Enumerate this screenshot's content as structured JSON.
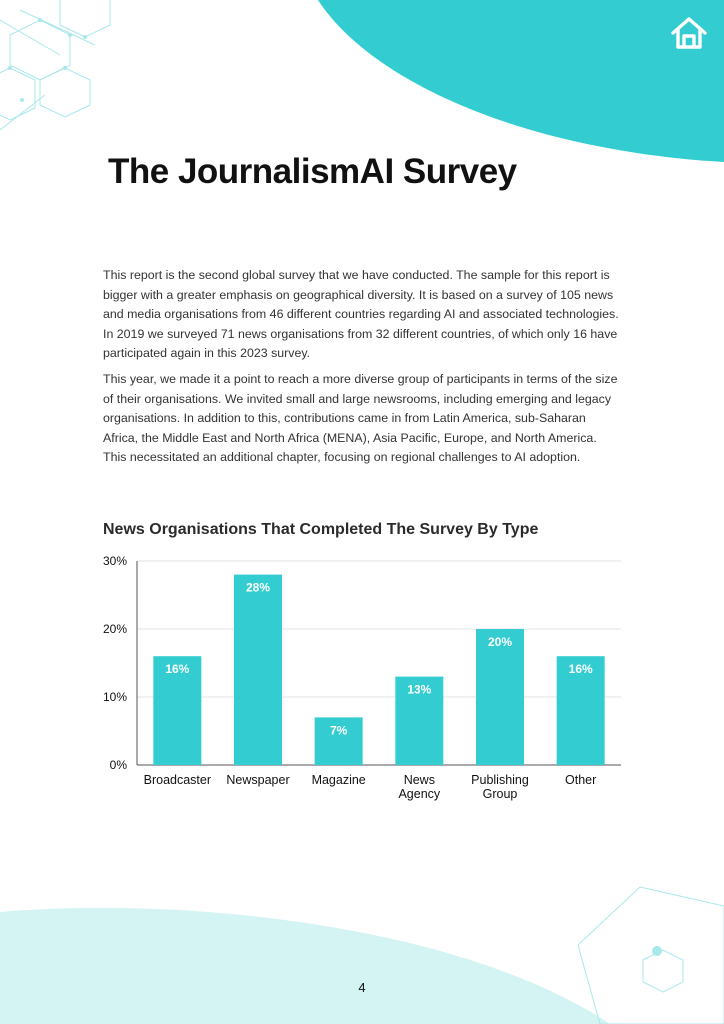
{
  "page": {
    "title": "The JournalismAI Survey",
    "page_number": "4",
    "accent_color": "#33cdd1",
    "light_accent_color": "#d3f4f3"
  },
  "header": {
    "home_icon": "home-icon"
  },
  "body": {
    "paragraphs": [
      "This report is the second global survey that we have conducted. The sample for this report is bigger with a greater emphasis on geographical diversity. It is based on a survey of 105 news and media organisations from 46 different countries regarding AI and associated technologies. In 2019 we surveyed 71 news organisations from 32 different countries, of which only 16 have participated again in this 2023 survey.",
      "This year, we made it a point to reach a more diverse group of participants in terms of the size of their organisations. We invited small and large newsrooms, including emerging and legacy organisations. In addition to this, contributions came in from Latin America, sub-Saharan Africa, the Middle East and North Africa (MENA), Asia Pacific, Europe, and North America. This necessitated an additional chapter, focusing on regional challenges to AI adoption."
    ]
  },
  "chart_data": {
    "type": "bar",
    "title": "News Organisations That Completed The Survey By Type",
    "categories": [
      "Broadcaster",
      "Newspaper",
      "Magazine",
      "News Agency",
      "Publishing Group",
      "Other"
    ],
    "category_lines": [
      [
        "Broadcaster"
      ],
      [
        "Newspaper"
      ],
      [
        "Magazine"
      ],
      [
        "News",
        "Agency"
      ],
      [
        "Publishing",
        "Group"
      ],
      [
        "Other"
      ]
    ],
    "values": [
      16,
      28,
      7,
      13,
      20,
      16
    ],
    "value_labels": [
      "16%",
      "28%",
      "7%",
      "13%",
      "20%",
      "16%"
    ],
    "ylim": [
      0,
      30
    ],
    "yticks": [
      0,
      10,
      20,
      30
    ],
    "ytick_labels": [
      "0%",
      "10%",
      "20%",
      "30%"
    ],
    "xlabel": "",
    "ylabel": "",
    "grid": true,
    "bar_color": "#33cdd1"
  }
}
